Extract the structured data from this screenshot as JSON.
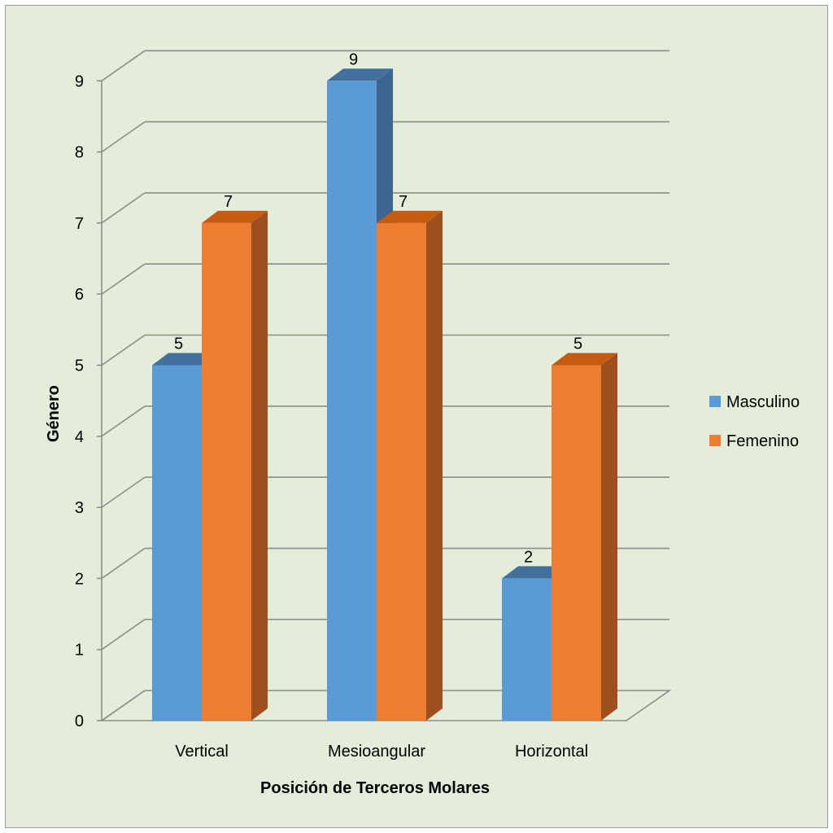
{
  "chart_data": {
    "type": "bar",
    "style": "3d-clustered-column",
    "categories": [
      "Vertical",
      "Mesioangular",
      "Horizontal"
    ],
    "series": [
      {
        "name": "Masculino",
        "values": [
          5,
          9,
          2
        ],
        "color": "#5B9BD5",
        "side_color": "#3C6690",
        "top_color": "#41719C"
      },
      {
        "name": "Femenino",
        "values": [
          7,
          7,
          5
        ],
        "color": "#ED7D31",
        "side_color": "#9E4F1E",
        "top_color": "#C55A11"
      }
    ],
    "xlabel": "Posición de Terceros Molares",
    "ylabel": "Género",
    "ylim": [
      0,
      9
    ],
    "yticks": [
      "0",
      "1",
      "2",
      "3",
      "4",
      "5",
      "6",
      "7",
      "8",
      "9"
    ],
    "data_labels": true,
    "grid": true,
    "legend": "right",
    "background": "#E3EDDA",
    "border_color": "#9A9A9A",
    "gridline_color": "#8C8C8C"
  }
}
